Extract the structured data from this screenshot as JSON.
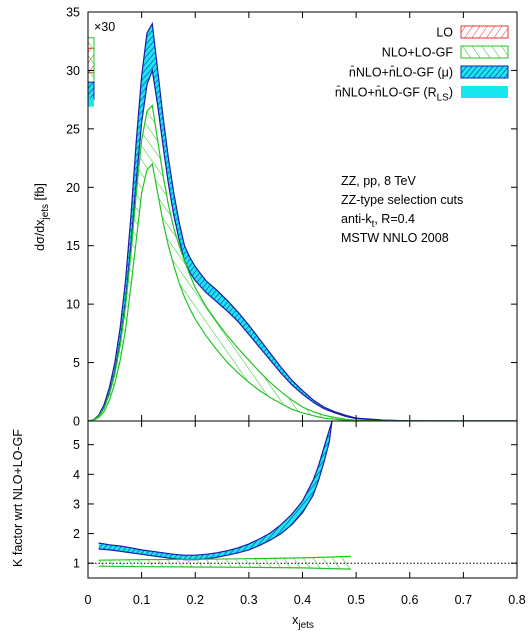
{
  "chart_data": [
    {
      "panel": "main",
      "type": "line",
      "ylabel_base": "dσ/dx",
      "ylabel_sub": "jets",
      "ylabel_unit": " [fb]",
      "xlim": [
        0,
        0.8
      ],
      "ylim": [
        0,
        35
      ],
      "yticks": [
        0,
        5,
        10,
        15,
        20,
        25,
        30,
        35
      ],
      "yticklabels": [
        "0",
        "5",
        "10",
        "15",
        "20",
        "25",
        "30",
        "35"
      ],
      "multiplier": "×30",
      "legend_position": "top-right",
      "legend": [
        {
          "text": "LO",
          "sub": "",
          "color": "#e8332c",
          "style": "hatch-right"
        },
        {
          "text": "NLO+LO-GF",
          "sub": "",
          "color": "#22c422",
          "style": "hatch-left"
        },
        {
          "text": "n̄NLO+n̄LO-GF (μ)",
          "sub": "",
          "color": "#1c1ca8",
          "style": "hatch-dense"
        },
        {
          "text": "n̄NLO+n̄LO-GF (R",
          "sub": "LS",
          "suffix": ")",
          "color": "#19e6ee",
          "style": "solid"
        }
      ],
      "annotations": [
        {
          "text": "ZZ, pp, 8 TeV"
        },
        {
          "text": "ZZ-type selection cuts"
        },
        {
          "text": "anti-k",
          "sub": "t",
          "suffix": ", R=0.4"
        },
        {
          "text": "MSTW NNLO 2008"
        }
      ],
      "series": [
        {
          "name": "n̄NLO+n̄LO-GF (μ)",
          "color": "#1c1ca8",
          "x": [
            0,
            0.01,
            0.02,
            0.03,
            0.04,
            0.05,
            0.06,
            0.07,
            0.08,
            0.09,
            0.1,
            0.11,
            0.12,
            0.13,
            0.14,
            0.15,
            0.16,
            0.17,
            0.18,
            0.19,
            0.2,
            0.22,
            0.24,
            0.26,
            0.28,
            0.3,
            0.32,
            0.34,
            0.36,
            0.38,
            0.4,
            0.42,
            0.44,
            0.46,
            0.48,
            0.5,
            0.55,
            0.6,
            0.65,
            0.7,
            0.75,
            0.8
          ],
          "upper": [
            0,
            0.1,
            0.5,
            1.4,
            2.9,
            5.0,
            8.0,
            12.0,
            17.5,
            24.0,
            29.5,
            33.2,
            34.0,
            30.0,
            26.0,
            22.5,
            19.5,
            17.0,
            15.0,
            14.0,
            13.2,
            12.0,
            11.2,
            10.3,
            9.3,
            8.2,
            7.0,
            5.8,
            4.6,
            3.5,
            2.6,
            1.8,
            1.2,
            0.8,
            0.5,
            0.25,
            0.08,
            0.02,
            0.0,
            0.0,
            0.0,
            0.0
          ],
          "lower": [
            0,
            0.08,
            0.4,
            1.1,
            2.4,
            4.2,
            6.8,
            10.2,
            15.0,
            20.5,
            25.5,
            28.8,
            30.0,
            27.0,
            23.5,
            20.3,
            17.6,
            15.5,
            13.7,
            12.7,
            12.0,
            11.0,
            10.2,
            9.4,
            8.5,
            7.4,
            6.3,
            5.2,
            4.1,
            3.1,
            2.3,
            1.6,
            1.05,
            0.7,
            0.4,
            0.2,
            0.06,
            0.01,
            0.0,
            0.0,
            0.0,
            0.0
          ]
        },
        {
          "name": "NLO+LO-GF",
          "color": "#22c422",
          "x": [
            0,
            0.01,
            0.02,
            0.03,
            0.04,
            0.05,
            0.06,
            0.07,
            0.08,
            0.09,
            0.1,
            0.11,
            0.12,
            0.13,
            0.14,
            0.15,
            0.16,
            0.17,
            0.18,
            0.19,
            0.2,
            0.22,
            0.24,
            0.26,
            0.28,
            0.3,
            0.32,
            0.34,
            0.36,
            0.38,
            0.4,
            0.42,
            0.44,
            0.46,
            0.48,
            0.5,
            0.55,
            0.6,
            0.65,
            0.7,
            0.75,
            0.8
          ],
          "upper": [
            0,
            0.08,
            0.4,
            1.1,
            2.3,
            4.0,
            6.5,
            9.8,
            14.3,
            19.5,
            24.0,
            26.5,
            27.0,
            24.0,
            21.0,
            18.5,
            16.5,
            15.0,
            13.7,
            12.5,
            11.4,
            9.8,
            8.5,
            7.3,
            6.2,
            5.2,
            4.2,
            3.3,
            2.5,
            1.8,
            1.2,
            0.8,
            0.5,
            0.3,
            0.15,
            0.05,
            0.01,
            0.0,
            0.0,
            0.0,
            0.0,
            0.0
          ],
          "lower": [
            0,
            0.06,
            0.3,
            0.8,
            1.8,
            3.2,
            5.2,
            7.8,
            11.5,
            15.5,
            19.5,
            21.5,
            22.0,
            19.5,
            17.0,
            15.0,
            13.3,
            11.8,
            10.6,
            9.6,
            8.7,
            7.3,
            6.1,
            5.0,
            4.1,
            3.3,
            2.6,
            2.0,
            1.5,
            1.0,
            0.7,
            0.45,
            0.25,
            0.15,
            0.08,
            0.03,
            0.0,
            0.0,
            0.0,
            0.0,
            0.0,
            0.0
          ]
        }
      ],
      "edge_boxes": [
        {
          "name": "LO",
          "color": "#e8332c",
          "y_range": [
            29.8,
            31.9
          ]
        },
        {
          "name": "NLO+LO-GF",
          "color": "#22c422",
          "y_range": [
            28.5,
            32.8
          ]
        },
        {
          "name": "n̄NLO+n̄LO-GF (μ)",
          "color": "#1c1ca8",
          "y_range": [
            27.5,
            29.0
          ]
        },
        {
          "name": "n̄NLO+n̄LO-GF (R_LS)",
          "color": "#19e6ee",
          "y_range": [
            26.9,
            27.6
          ]
        }
      ]
    },
    {
      "panel": "ratio",
      "type": "line",
      "ylabel": "K factor wrt NLO+LO-GF",
      "xlabel_base": "x",
      "xlabel_sub": "jets",
      "xlim": [
        0,
        0.8
      ],
      "ylim": [
        0.5,
        5.8
      ],
      "xticks": [
        0,
        0.1,
        0.2,
        0.3,
        0.4,
        0.5,
        0.6,
        0.7,
        0.8
      ],
      "xticklabels": [
        "0",
        "0.1",
        "0.2",
        "0.3",
        "0.4",
        "0.5",
        "0.6",
        "0.7",
        "0.8"
      ],
      "yticks": [
        1,
        2,
        3,
        4,
        5
      ],
      "yticklabels": [
        "1",
        "2",
        "3",
        "4",
        "5"
      ],
      "reference_line": 1,
      "series": [
        {
          "name": "n̄NLO+n̄LO-GF (μ)",
          "color": "#1c1ca8",
          "x": [
            0.02,
            0.04,
            0.06,
            0.08,
            0.1,
            0.12,
            0.14,
            0.16,
            0.18,
            0.2,
            0.22,
            0.24,
            0.26,
            0.28,
            0.3,
            0.32,
            0.34,
            0.36,
            0.38,
            0.4,
            0.42,
            0.43,
            0.44,
            0.45,
            0.455
          ],
          "upper": [
            1.68,
            1.62,
            1.58,
            1.52,
            1.45,
            1.4,
            1.35,
            1.3,
            1.27,
            1.27,
            1.3,
            1.35,
            1.42,
            1.52,
            1.65,
            1.82,
            2.02,
            2.3,
            2.65,
            3.1,
            3.8,
            4.3,
            4.9,
            5.5,
            5.8
          ],
          "lower": [
            1.48,
            1.45,
            1.4,
            1.35,
            1.3,
            1.25,
            1.2,
            1.15,
            1.12,
            1.12,
            1.15,
            1.2,
            1.27,
            1.35,
            1.45,
            1.6,
            1.78,
            2.0,
            2.3,
            2.7,
            3.3,
            3.8,
            4.4,
            5.1,
            5.8
          ]
        },
        {
          "name": "NLO+LO-GF",
          "color": "#22c422",
          "x": [
            0.02,
            0.1,
            0.2,
            0.3,
            0.4,
            0.49
          ],
          "upper": [
            1.1,
            1.12,
            1.13,
            1.15,
            1.18,
            1.23
          ],
          "lower": [
            0.9,
            0.88,
            0.87,
            0.86,
            0.84,
            0.8
          ]
        }
      ]
    }
  ]
}
